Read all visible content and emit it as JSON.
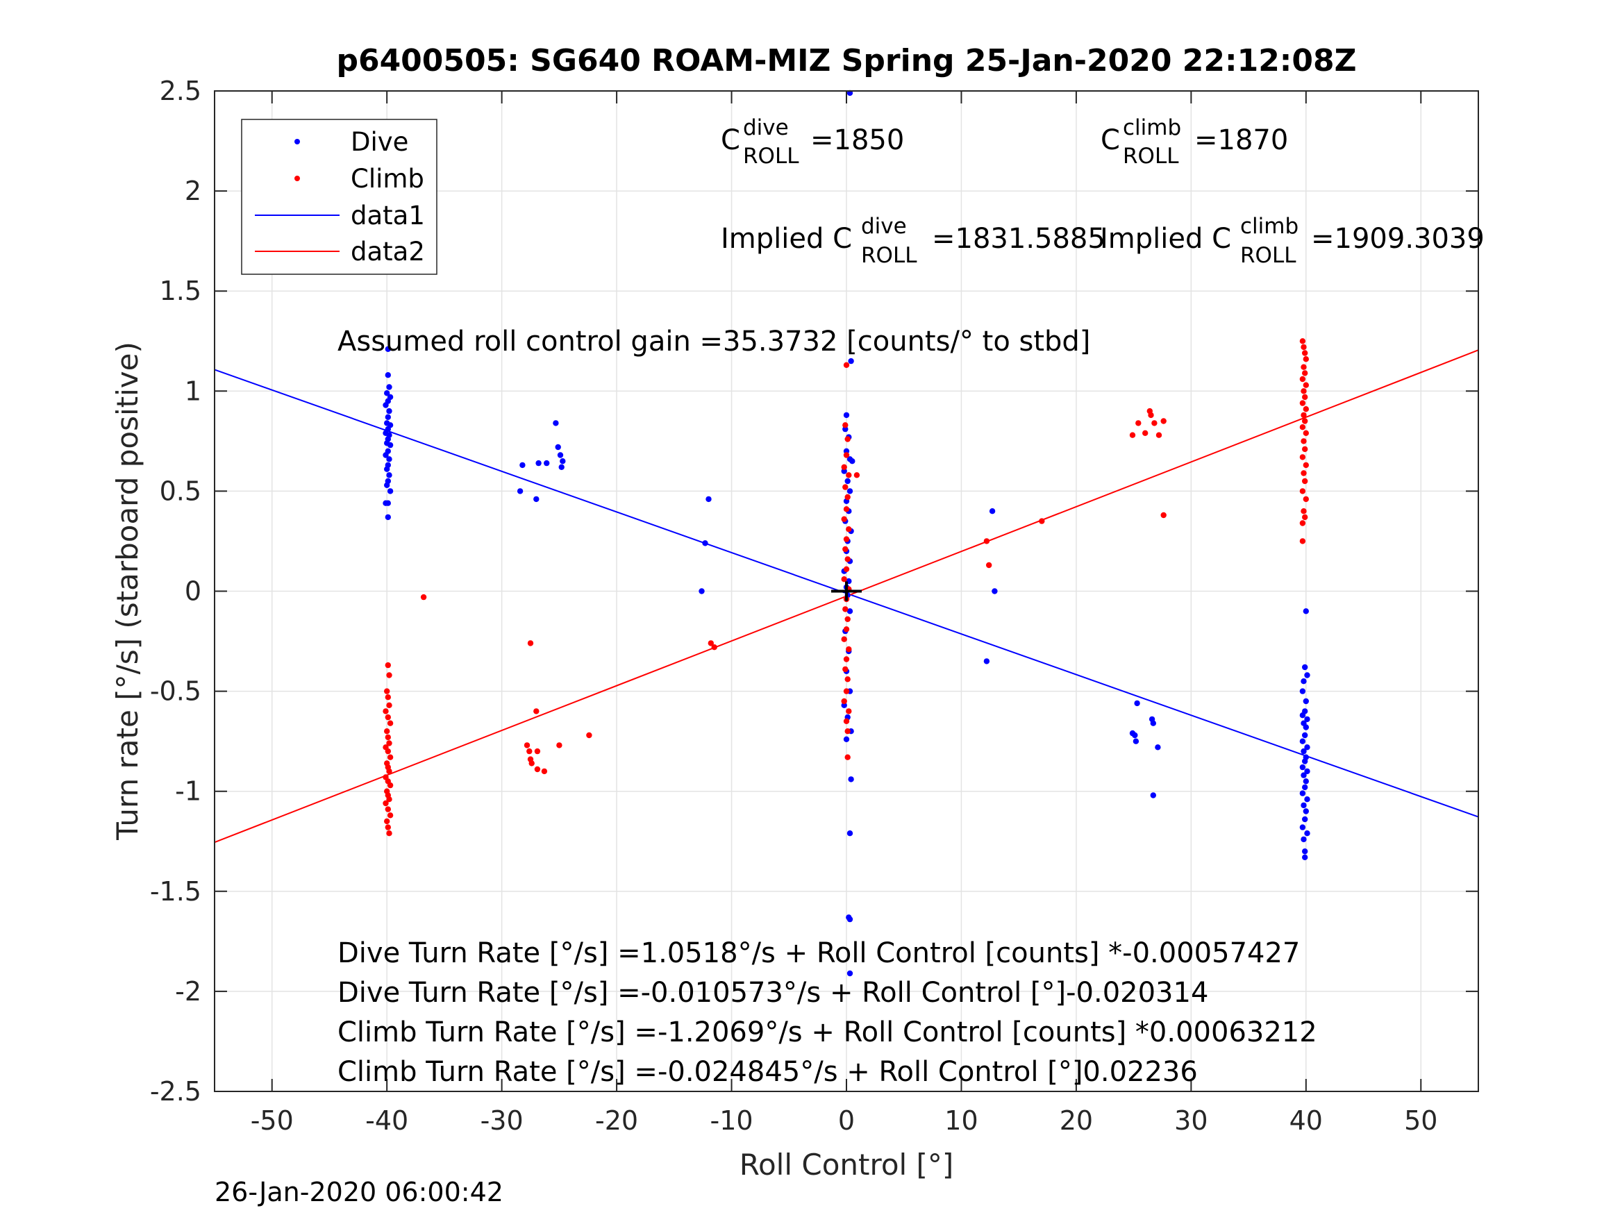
{
  "chart_data": {
    "type": "scatter",
    "title": "p6400505: SG640 ROAM-MIZ Spring 25-Jan-2020 22:12:08Z",
    "xlabel": "Roll Control [°]",
    "ylabel": "Turn rate [°/s] (starboard positive)",
    "xlim": [
      -55,
      55
    ],
    "ylim": [
      -2.5,
      2.5
    ],
    "xticks": [
      "-50",
      "-40",
      "-30",
      "-20",
      "-10",
      "0",
      "10",
      "20",
      "30",
      "40",
      "50"
    ],
    "yticks": [
      "2.5",
      "2",
      "1.5",
      "1",
      "0.5",
      "0",
      "-0.5",
      "-1",
      "-1.5",
      "-2",
      "-2.5"
    ],
    "grid": true,
    "legend_position": "top-left",
    "legend": [
      "Dive",
      "Climb",
      "data1",
      "data2"
    ],
    "colors": {
      "dive": "#0000ff",
      "climb": "#ff0000",
      "zero_marker": "#000000"
    },
    "series": [
      {
        "name": "Dive",
        "style": "points",
        "color": "#0000ff",
        "points": [
          [
            -39.9,
            1.21
          ],
          [
            -39.9,
            1.08
          ],
          [
            -39.8,
            1.02
          ],
          [
            -40.0,
            0.99
          ],
          [
            -39.7,
            0.97
          ],
          [
            -39.9,
            0.95
          ],
          [
            -40.1,
            0.93
          ],
          [
            -39.8,
            0.9
          ],
          [
            -39.9,
            0.87
          ],
          [
            -40.0,
            0.84
          ],
          [
            -39.7,
            0.83
          ],
          [
            -39.9,
            0.81
          ],
          [
            -40.1,
            0.79
          ],
          [
            -39.8,
            0.78
          ],
          [
            -39.9,
            0.76
          ],
          [
            -40.0,
            0.74
          ],
          [
            -39.7,
            0.73
          ],
          [
            -39.9,
            0.7
          ],
          [
            -40.1,
            0.68
          ],
          [
            -39.8,
            0.66
          ],
          [
            -39.9,
            0.63
          ],
          [
            -40.0,
            0.61
          ],
          [
            -39.8,
            0.58
          ],
          [
            -39.9,
            0.55
          ],
          [
            -40.0,
            0.53
          ],
          [
            -39.7,
            0.5
          ],
          [
            -40.1,
            0.44
          ],
          [
            -39.9,
            0.44
          ],
          [
            -39.9,
            0.37
          ],
          [
            -28.2,
            0.63
          ],
          [
            -26.8,
            0.64
          ],
          [
            -26.1,
            0.64
          ],
          [
            -25.3,
            0.84
          ],
          [
            -25.1,
            0.72
          ],
          [
            -24.9,
            0.68
          ],
          [
            -24.7,
            0.65
          ],
          [
            -24.8,
            0.62
          ],
          [
            -28.4,
            0.5
          ],
          [
            -27.0,
            0.46
          ],
          [
            -12.0,
            0.46
          ],
          [
            -12.3,
            0.24
          ],
          [
            -12.6,
            0.0
          ],
          [
            0.3,
            2.49
          ],
          [
            0.4,
            1.15
          ],
          [
            0.0,
            0.88
          ],
          [
            -0.1,
            0.81
          ],
          [
            0.2,
            0.77
          ],
          [
            0.0,
            0.7
          ],
          [
            0.3,
            0.66
          ],
          [
            0.5,
            0.65
          ],
          [
            -0.2,
            0.6
          ],
          [
            0.1,
            0.55
          ],
          [
            0.3,
            0.5
          ],
          [
            0.0,
            0.45
          ],
          [
            0.2,
            0.4
          ],
          [
            -0.1,
            0.35
          ],
          [
            0.4,
            0.3
          ],
          [
            0.1,
            0.25
          ],
          [
            0.0,
            0.2
          ],
          [
            0.3,
            0.15
          ],
          [
            -0.2,
            0.1
          ],
          [
            0.2,
            0.05
          ],
          [
            0.0,
            0.02
          ],
          [
            0.1,
            -0.02
          ],
          [
            0.3,
            -0.1
          ],
          [
            -0.1,
            -0.2
          ],
          [
            0.2,
            -0.3
          ],
          [
            0.0,
            -0.4
          ],
          [
            0.3,
            -0.5
          ],
          [
            -0.2,
            -0.57
          ],
          [
            0.1,
            -0.63
          ],
          [
            0.4,
            -0.7
          ],
          [
            0.0,
            -0.74
          ],
          [
            0.4,
            -0.94
          ],
          [
            0.3,
            -1.21
          ],
          [
            0.2,
            -1.63
          ],
          [
            0.3,
            -1.64
          ],
          [
            0.3,
            -1.91
          ],
          [
            12.7,
            0.4
          ],
          [
            12.9,
            0.0
          ],
          [
            12.2,
            -0.35
          ],
          [
            25.3,
            -0.56
          ],
          [
            24.9,
            -0.71
          ],
          [
            25.1,
            -0.72
          ],
          [
            25.2,
            -0.75
          ],
          [
            26.6,
            -0.64
          ],
          [
            26.7,
            -0.66
          ],
          [
            27.1,
            -0.78
          ],
          [
            26.7,
            -1.02
          ],
          [
            40.0,
            -0.1
          ],
          [
            39.9,
            -0.38
          ],
          [
            40.1,
            -0.42
          ],
          [
            39.8,
            -0.45
          ],
          [
            39.7,
            -0.5
          ],
          [
            40.0,
            -0.55
          ],
          [
            39.9,
            -0.6
          ],
          [
            39.7,
            -0.62
          ],
          [
            40.1,
            -0.64
          ],
          [
            39.8,
            -0.66
          ],
          [
            40.0,
            -0.68
          ],
          [
            39.9,
            -0.72
          ],
          [
            39.7,
            -0.75
          ],
          [
            40.1,
            -0.78
          ],
          [
            39.8,
            -0.8
          ],
          [
            40.0,
            -0.83
          ],
          [
            39.9,
            -0.85
          ],
          [
            39.7,
            -0.88
          ],
          [
            40.1,
            -0.9
          ],
          [
            39.8,
            -0.92
          ],
          [
            40.0,
            -0.95
          ],
          [
            39.9,
            -0.98
          ],
          [
            39.7,
            -1.01
          ],
          [
            40.1,
            -1.04
          ],
          [
            39.8,
            -1.07
          ],
          [
            40.0,
            -1.1
          ],
          [
            39.9,
            -1.14
          ],
          [
            39.7,
            -1.18
          ],
          [
            40.1,
            -1.21
          ],
          [
            39.8,
            -1.24
          ],
          [
            39.9,
            -1.3
          ],
          [
            39.9,
            -1.33
          ]
        ]
      },
      {
        "name": "Climb",
        "style": "points",
        "color": "#ff0000",
        "points": [
          [
            -36.8,
            -0.03
          ],
          [
            -39.9,
            -0.37
          ],
          [
            -39.8,
            -0.42
          ],
          [
            -40.0,
            -0.5
          ],
          [
            -39.9,
            -0.53
          ],
          [
            -39.8,
            -0.57
          ],
          [
            -40.1,
            -0.6
          ],
          [
            -39.9,
            -0.63
          ],
          [
            -39.7,
            -0.66
          ],
          [
            -40.0,
            -0.7
          ],
          [
            -39.9,
            -0.73
          ],
          [
            -39.8,
            -0.76
          ],
          [
            -40.1,
            -0.78
          ],
          [
            -39.9,
            -0.8
          ],
          [
            -39.7,
            -0.83
          ],
          [
            -40.0,
            -0.86
          ],
          [
            -39.9,
            -0.88
          ],
          [
            -39.8,
            -0.9
          ],
          [
            -40.1,
            -0.93
          ],
          [
            -39.9,
            -0.95
          ],
          [
            -39.7,
            -0.97
          ],
          [
            -40.0,
            -1.0
          ],
          [
            -39.9,
            -1.02
          ],
          [
            -39.8,
            -1.04
          ],
          [
            -40.1,
            -1.06
          ],
          [
            -39.9,
            -1.09
          ],
          [
            -39.7,
            -1.12
          ],
          [
            -40.0,
            -1.15
          ],
          [
            -39.9,
            -1.18
          ],
          [
            -39.8,
            -1.21
          ],
          [
            -27.5,
            -0.26
          ],
          [
            -27.0,
            -0.6
          ],
          [
            -27.8,
            -0.77
          ],
          [
            -27.6,
            -0.8
          ],
          [
            -26.9,
            -0.8
          ],
          [
            -27.5,
            -0.84
          ],
          [
            -27.4,
            -0.86
          ],
          [
            -26.9,
            -0.89
          ],
          [
            -26.3,
            -0.9
          ],
          [
            -25.0,
            -0.77
          ],
          [
            -22.4,
            -0.72
          ],
          [
            -11.8,
            -0.26
          ],
          [
            -11.5,
            -0.28
          ],
          [
            0.0,
            1.13
          ],
          [
            -0.1,
            0.83
          ],
          [
            0.1,
            0.76
          ],
          [
            0.0,
            0.68
          ],
          [
            -0.2,
            0.62
          ],
          [
            0.2,
            0.58
          ],
          [
            0.9,
            0.58
          ],
          [
            -0.1,
            0.52
          ],
          [
            0.1,
            0.47
          ],
          [
            0.0,
            0.41
          ],
          [
            -0.2,
            0.36
          ],
          [
            0.2,
            0.31
          ],
          [
            0.0,
            0.26
          ],
          [
            -0.1,
            0.21
          ],
          [
            0.1,
            0.16
          ],
          [
            0.0,
            0.11
          ],
          [
            -0.2,
            0.06
          ],
          [
            0.2,
            0.01
          ],
          [
            0.0,
            -0.04
          ],
          [
            -0.1,
            -0.09
          ],
          [
            0.1,
            -0.14
          ],
          [
            0.0,
            -0.19
          ],
          [
            -0.2,
            -0.24
          ],
          [
            0.2,
            -0.29
          ],
          [
            0.0,
            -0.34
          ],
          [
            -0.1,
            -0.39
          ],
          [
            0.1,
            -0.44
          ],
          [
            0.0,
            -0.5
          ],
          [
            -0.2,
            -0.55
          ],
          [
            0.2,
            -0.6
          ],
          [
            0.0,
            -0.65
          ],
          [
            0.1,
            -0.7
          ],
          [
            0.1,
            -0.83
          ],
          [
            12.2,
            0.25
          ],
          [
            12.4,
            0.13
          ],
          [
            17.0,
            0.35
          ],
          [
            24.9,
            0.78
          ],
          [
            25.4,
            0.84
          ],
          [
            26.0,
            0.79
          ],
          [
            26.4,
            0.9
          ],
          [
            26.5,
            0.88
          ],
          [
            26.8,
            0.84
          ],
          [
            27.2,
            0.78
          ],
          [
            27.6,
            0.85
          ],
          [
            27.6,
            0.38
          ],
          [
            39.7,
            1.25
          ],
          [
            39.8,
            1.22
          ],
          [
            39.9,
            1.19
          ],
          [
            40.0,
            1.16
          ],
          [
            39.8,
            1.12
          ],
          [
            39.9,
            1.09
          ],
          [
            39.7,
            1.06
          ],
          [
            40.0,
            1.03
          ],
          [
            39.8,
            1.0
          ],
          [
            39.9,
            0.97
          ],
          [
            39.7,
            0.94
          ],
          [
            40.0,
            0.91
          ],
          [
            39.8,
            0.88
          ],
          [
            39.9,
            0.85
          ],
          [
            39.7,
            0.82
          ],
          [
            40.0,
            0.79
          ],
          [
            39.8,
            0.75
          ],
          [
            39.9,
            0.71
          ],
          [
            39.7,
            0.67
          ],
          [
            40.0,
            0.63
          ],
          [
            39.8,
            0.59
          ],
          [
            39.9,
            0.55
          ],
          [
            39.7,
            0.5
          ],
          [
            40.0,
            0.46
          ],
          [
            39.8,
            0.4
          ],
          [
            39.9,
            0.37
          ],
          [
            39.7,
            0.34
          ],
          [
            39.7,
            0.25
          ]
        ]
      },
      {
        "name": "data1",
        "style": "line",
        "color": "#0000ff",
        "x": [
          -55,
          55
        ],
        "y": [
          1.107,
          -1.128
        ]
      },
      {
        "name": "data2",
        "style": "line",
        "color": "#ff0000",
        "x": [
          -55,
          55
        ],
        "y": [
          -1.255,
          1.205
        ]
      }
    ],
    "zero_marker": [
      0,
      0
    ],
    "annotations": {
      "c_dive": {
        "base": "C",
        "sup": "dive",
        "sub": "ROLL",
        "value": "=1850"
      },
      "c_climb": {
        "base": "C",
        "sup": "climb",
        "sub": "ROLL",
        "value": "=1870"
      },
      "implied_dive": {
        "base": "Implied C",
        "sup": "dive",
        "sub": "ROLL",
        "value": "=1831.5885"
      },
      "implied_climb": {
        "base": "Implied C",
        "sup": "climb",
        "sub": "ROLL",
        "value": "=1909.3039"
      },
      "gain": "Assumed roll control gain =35.3732 [counts/° to stbd]",
      "fits": [
        "Dive Turn Rate [°/s] =1.0518°/s + Roll Control [counts] *-0.00057427",
        "Dive Turn Rate [°/s] =-0.010573°/s + Roll Control [°]-0.020314",
        "Climb Turn Rate [°/s] =-1.2069°/s + Roll Control [counts] *0.00063212",
        "Climb Turn Rate [°/s] =-0.024845°/s + Roll Control [°]0.02236"
      ]
    }
  },
  "footer_timestamp": "26-Jan-2020 06:00:42"
}
